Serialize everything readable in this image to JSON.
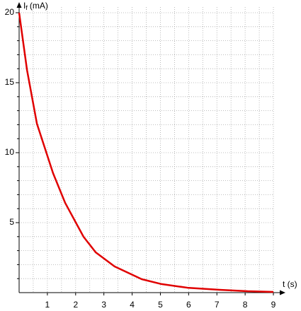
{
  "chart_data": {
    "type": "line",
    "y_label": "I",
    "y_label_sub": "f",
    "y_label_unit": "(mA)",
    "x_label": "t (s)",
    "xlim": [
      0,
      9.2
    ],
    "ylim": [
      0,
      20
    ],
    "xticks": [
      1,
      2,
      3,
      4,
      5,
      6,
      7,
      8,
      9
    ],
    "yticks": [
      5,
      10,
      15,
      20
    ],
    "minor_xticks": [
      0.5,
      1.5,
      2.5,
      3.5,
      4.5,
      5.5,
      6.5,
      7.5,
      8.5
    ],
    "minor_yticks": [
      1,
      2,
      3,
      4,
      6,
      7,
      8,
      9,
      11,
      12,
      13,
      14,
      16,
      17,
      18,
      19
    ],
    "grid": true,
    "series": [
      {
        "color": "#e00000",
        "x": [
          0,
          0.28,
          0.63,
          1.2,
          1.63,
          2.28,
          2.71,
          3.38,
          4.34,
          5.04,
          5.96,
          7.09,
          8.09,
          9.0
        ],
        "values": [
          20,
          15.9,
          12.07,
          8.54,
          6.41,
          3.99,
          2.88,
          1.87,
          0.96,
          0.61,
          0.35,
          0.2,
          0.1,
          0.05
        ]
      }
    ]
  }
}
